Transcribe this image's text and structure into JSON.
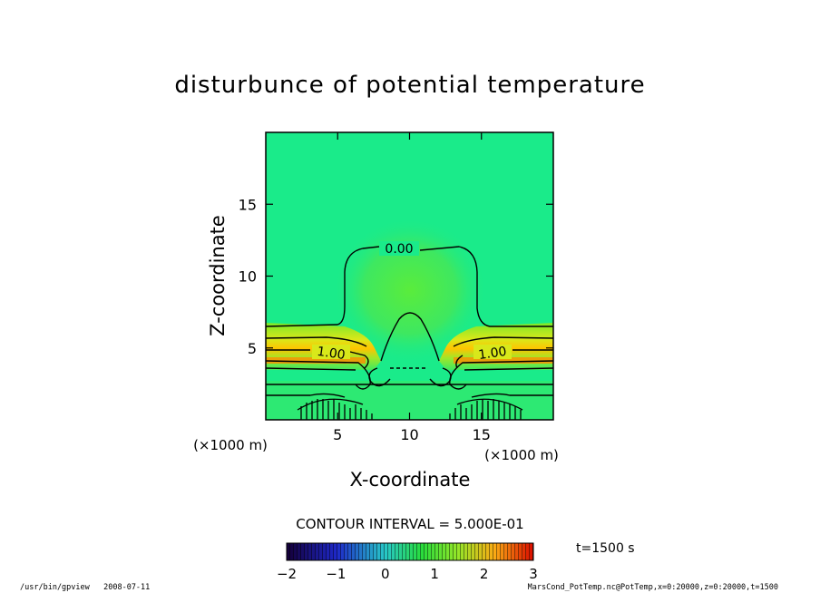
{
  "chart_data": {
    "type": "heatmap",
    "title": "disturbunce of potential temperature",
    "xlabel": "X-coordinate",
    "ylabel": "Z-coordinate",
    "x_unit": "(×1000 m)",
    "z_unit": "(×1000 m)",
    "xlim": [
      0,
      20
    ],
    "ylim": [
      0,
      20
    ],
    "x_ticks": [
      5,
      10,
      15
    ],
    "y_ticks": [
      5,
      10,
      15
    ],
    "contour_interval_text": "CONTOUR INTERVAL = 5.000E-01",
    "contour_labels": [
      "0.00",
      "1.00",
      "1.00"
    ],
    "time_label": "t=1500 s",
    "colorbar": {
      "range": [
        -2,
        3
      ],
      "ticks": [
        "−2",
        "−1",
        "0",
        "1",
        "2",
        "3"
      ]
    },
    "colors": {
      "background_field": "#1aeb8a",
      "positive_high": "#ff2a00",
      "negative_low": "#140078"
    }
  },
  "footer": {
    "left": "/usr/bin/gpview   2008-07-11",
    "right": "MarsCond_PotTemp.nc@PotTemp,x=0:20000,z=0:20000,t=1500"
  }
}
